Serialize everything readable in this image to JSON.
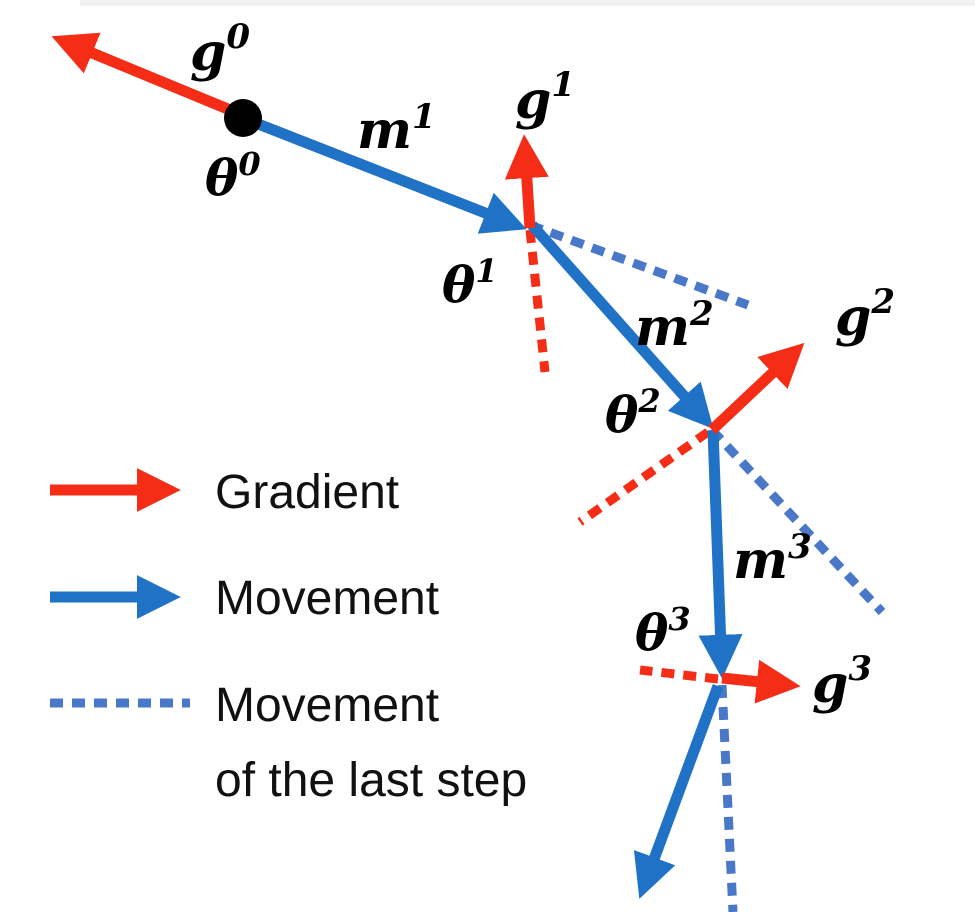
{
  "colors": {
    "gradient": "#f52d17",
    "movement": "#1f72c6",
    "last_step": "#4a78c9",
    "point": "#000000"
  },
  "labels": {
    "g0": {
      "base": "g",
      "sup": "0"
    },
    "g1": {
      "base": "g",
      "sup": "1"
    },
    "g2": {
      "base": "g",
      "sup": "2"
    },
    "g3": {
      "base": "g",
      "sup": "3"
    },
    "m1": {
      "base": "m",
      "sup": "1"
    },
    "m2": {
      "base": "m",
      "sup": "2"
    },
    "m3": {
      "base": "m",
      "sup": "3"
    },
    "theta0": {
      "base": "θ",
      "sup": "0"
    },
    "theta1": {
      "base": "θ",
      "sup": "1"
    },
    "theta2": {
      "base": "θ",
      "sup": "2"
    },
    "theta3": {
      "base": "θ",
      "sup": "3"
    }
  },
  "legend": {
    "gradient": "Gradient",
    "movement": "Movement",
    "last_step_line1": "Movement",
    "last_step_line2": "of the last step"
  }
}
